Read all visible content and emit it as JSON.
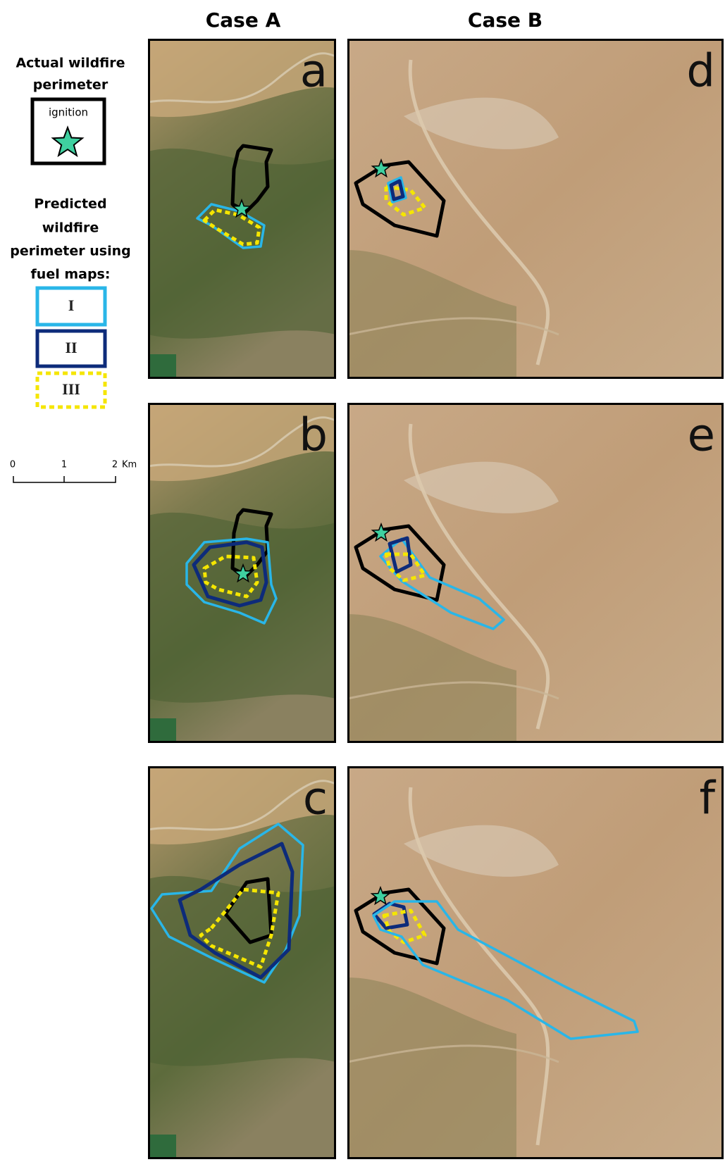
{
  "header": {
    "case_a": "Case A",
    "case_b": "Case B"
  },
  "legend": {
    "actual": {
      "title_lines": [
        "Actual wildfire",
        "perimeter"
      ],
      "ignition": "ignition"
    },
    "predicted": {
      "title_lines": [
        "Predicted",
        "wildfire",
        "perimeter using",
        "fuel maps:"
      ],
      "items": [
        "I",
        "II",
        "III"
      ]
    }
  },
  "scale_bar": {
    "labels": [
      "0",
      "1",
      "2"
    ],
    "unit": "Km"
  },
  "panels": [
    "a",
    "b",
    "c",
    "d",
    "e",
    "f"
  ]
}
